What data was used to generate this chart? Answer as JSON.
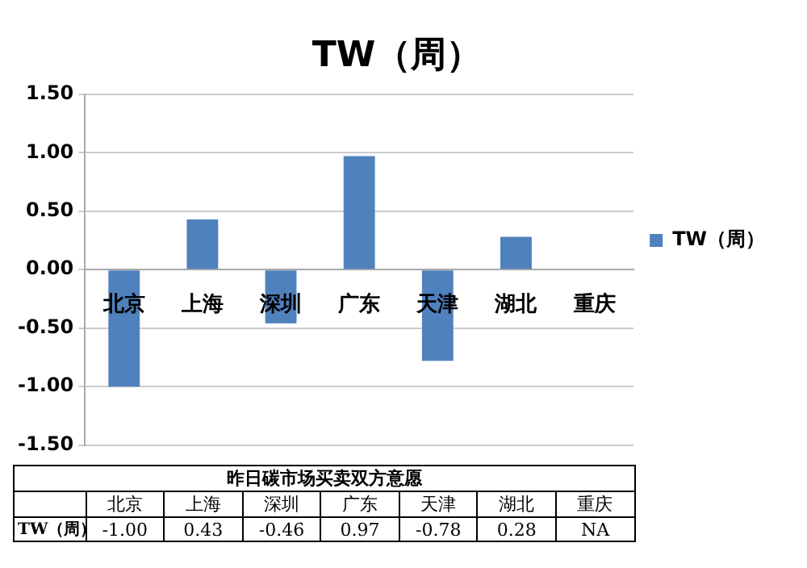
{
  "chart_data": {
    "type": "bar",
    "title": "TW（周）",
    "categories": [
      "北京",
      "上海",
      "深圳",
      "广东",
      "天津",
      "湖北",
      "重庆"
    ],
    "series": [
      {
        "name": "TW（周）",
        "color": "#4f81bd",
        "values": [
          -1.0,
          0.43,
          -0.46,
          0.97,
          -0.78,
          0.28,
          null
        ],
        "value_labels": [
          "-1.00",
          "0.43",
          "-0.46",
          "0.97",
          "-0.78",
          "0.28",
          "NA"
        ]
      }
    ],
    "ylim": [
      -1.5,
      1.5
    ],
    "yticks": [
      {
        "value": -1.5,
        "label": "-1.50"
      },
      {
        "value": -1,
        "label": "-1.00"
      },
      {
        "value": -0.5,
        "label": "-0.50"
      },
      {
        "value": 0,
        "label": "0.00"
      },
      {
        "value": 0.5,
        "label": "0.50"
      },
      {
        "value": 1,
        "label": "1.00"
      },
      {
        "value": 1.5,
        "label": "1.50"
      }
    ],
    "grid": "y",
    "legend": "right",
    "annotations": [
      "昨日碳市场买卖双方意愿"
    ]
  }
}
